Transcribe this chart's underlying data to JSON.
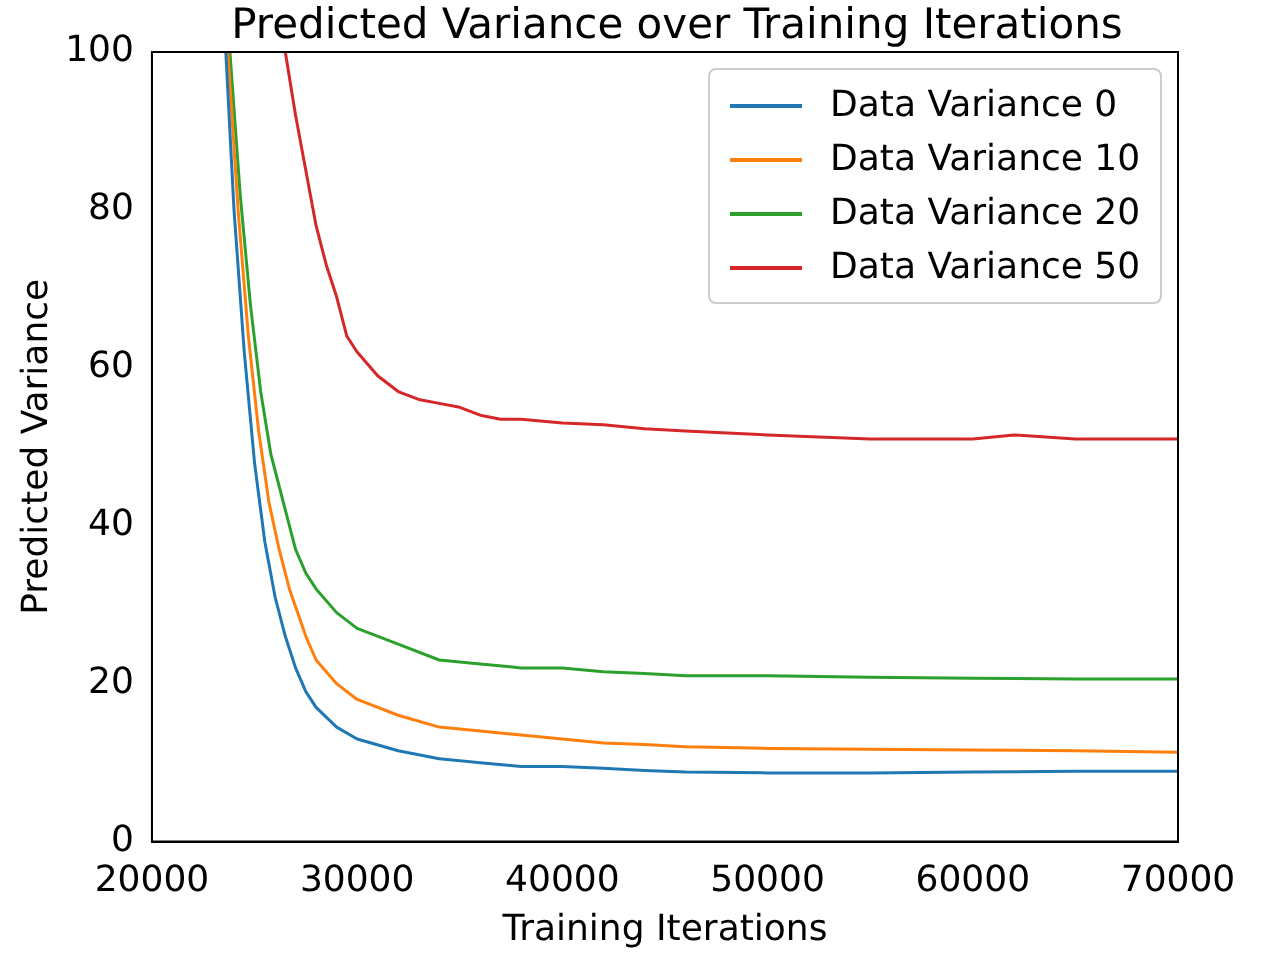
{
  "chart_data": {
    "type": "line",
    "title": "Predicted Variance over Training Iterations",
    "xlabel": "Training Iterations",
    "ylabel": "Predicted Variance",
    "xlim": [
      20000,
      70000
    ],
    "xticks": [
      20000,
      30000,
      40000,
      50000,
      60000,
      70000
    ],
    "ylim": [
      0,
      100
    ],
    "yticks": [
      0,
      20,
      40,
      60,
      80,
      100
    ],
    "grid": false,
    "legend": "top right",
    "marker": "none",
    "line_style": "solid",
    "series": [
      {
        "name": "Data Variance 0",
        "color": "#1f77b4",
        "x": [
          23600,
          24000,
          24500,
          25000,
          25500,
          26000,
          26500,
          27000,
          27500,
          28000,
          29000,
          30000,
          32000,
          34000,
          36000,
          38000,
          40000,
          42000,
          44000,
          46000,
          50000,
          55000,
          60000,
          65000,
          70000
        ],
        "values": [
          100,
          80,
          62,
          48,
          38,
          31,
          26,
          22,
          19,
          17,
          14.5,
          13,
          11.5,
          10.5,
          10,
          9.5,
          9.5,
          9.3,
          9,
          8.8,
          8.7,
          8.7,
          8.8,
          8.9,
          8.9
        ]
      },
      {
        "name": "Data Variance 10",
        "color": "#ff7f0e",
        "x": [
          23700,
          24200,
          24700,
          25200,
          25700,
          26200,
          26700,
          27500,
          28000,
          29000,
          30000,
          32000,
          34000,
          36000,
          38000,
          40000,
          42000,
          44000,
          46000,
          50000,
          55000,
          60000,
          65000,
          70000
        ],
        "values": [
          100,
          80,
          64,
          52,
          43,
          37,
          32,
          26,
          23,
          20,
          18,
          16,
          14.5,
          14,
          13.5,
          13,
          12.5,
          12.3,
          12,
          11.8,
          11.7,
          11.6,
          11.5,
          11.3
        ]
      },
      {
        "name": "Data Variance 20",
        "color": "#2ca02c",
        "x": [
          23800,
          24300,
          24800,
          25300,
          25800,
          26500,
          27000,
          27500,
          28000,
          29000,
          30000,
          32000,
          34000,
          36000,
          38000,
          40000,
          42000,
          44000,
          46000,
          50000,
          55000,
          60000,
          65000,
          70000
        ],
        "values": [
          100,
          82,
          68,
          57,
          49,
          42,
          37,
          34,
          32,
          29,
          27,
          25,
          23,
          22.5,
          22,
          22,
          21.5,
          21.3,
          21,
          21,
          20.8,
          20.7,
          20.6,
          20.6
        ]
      },
      {
        "name": "Data Variance 50",
        "color": "#d62728",
        "x": [
          26500,
          27000,
          27500,
          28000,
          28500,
          29000,
          29500,
          30000,
          31000,
          32000,
          33000,
          34000,
          35000,
          36000,
          37000,
          38000,
          40000,
          42000,
          44000,
          46000,
          50000,
          55000,
          60000,
          62000,
          65000,
          70000
        ],
        "values": [
          100,
          92,
          85,
          78,
          73,
          69,
          64,
          62,
          59,
          57,
          56,
          55.5,
          55,
          54,
          53.5,
          53.5,
          53,
          52.8,
          52.3,
          52,
          51.5,
          51,
          51,
          51.5,
          51,
          51
        ]
      }
    ]
  }
}
